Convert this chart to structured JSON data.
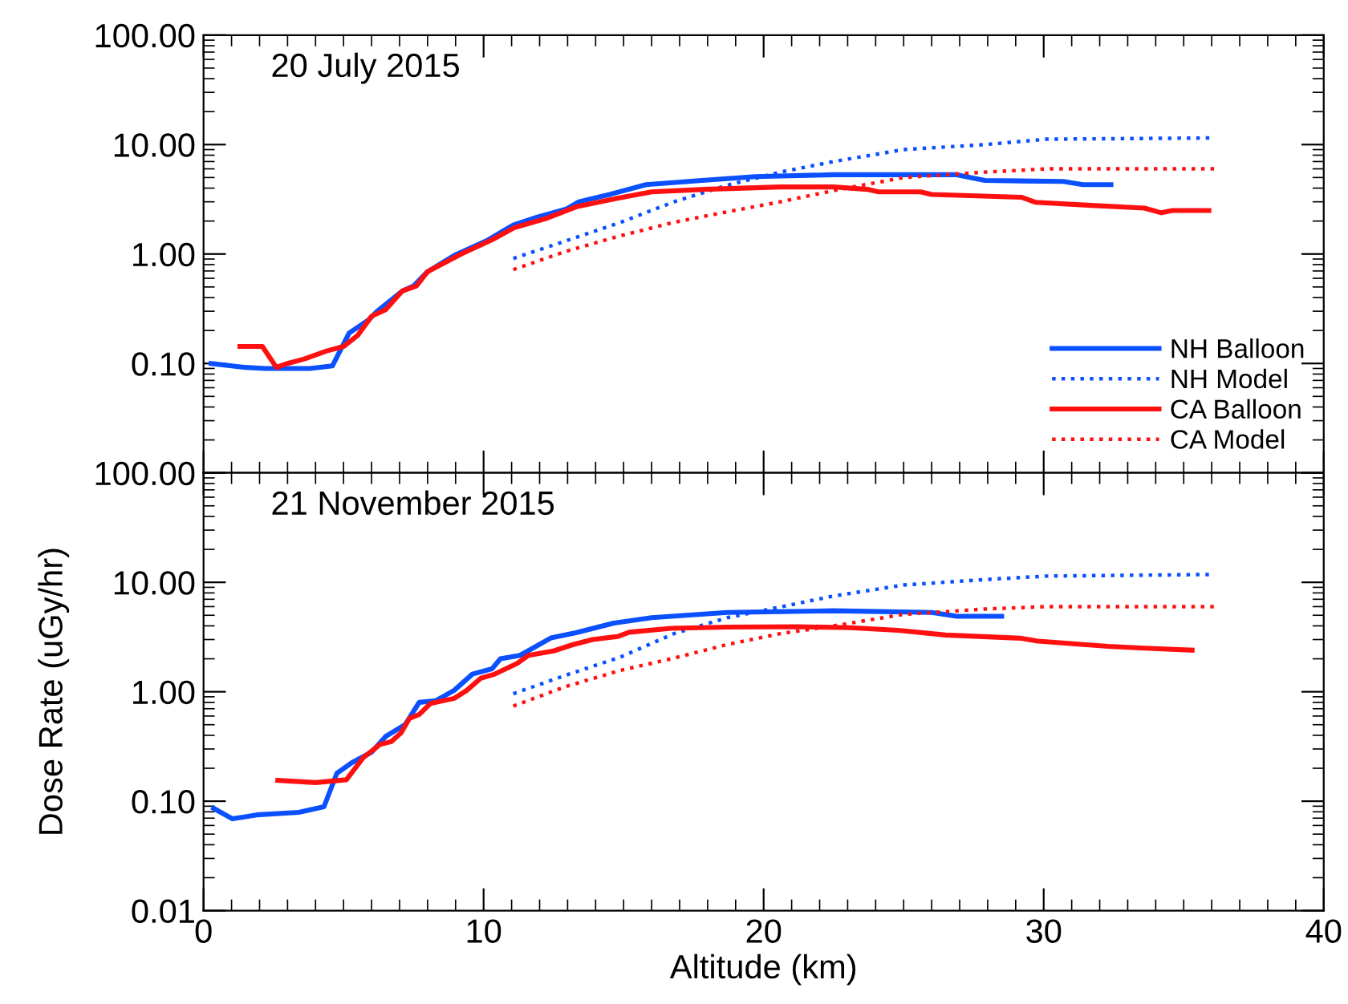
{
  "chart_data": [
    {
      "type": "line",
      "title": "20 July 2015",
      "xlim": [
        0,
        40
      ],
      "xticks": [
        0,
        10,
        20,
        30,
        40
      ],
      "ylim": [
        0.01,
        100
      ],
      "log": true,
      "yticks": [
        {
          "value": 0.01,
          "label": null
        },
        {
          "value": 0.1,
          "label": "0.10"
        },
        {
          "value": 1,
          "label": "1.00"
        },
        {
          "value": 10,
          "label": "10.00"
        },
        {
          "value": 100,
          "label": "100.00"
        }
      ],
      "tick_labels": "y",
      "legend": "bottom right",
      "grid": false,
      "series": [
        {
          "name": "NH Balloon",
          "color": "#0a50ff",
          "line_style": "solid",
          "x": [
            0.27,
            1.5,
            2.2,
            3.8,
            4.6,
            5.2,
            5.9,
            6.2,
            7.1,
            7.5,
            8.0,
            8.95,
            10.1,
            11.06,
            11.9,
            12.95,
            13.4,
            14.5,
            15.8,
            17.8,
            19.7,
            22.5,
            26.9,
            27.9,
            30.7,
            31.4,
            32.4
          ],
          "values": [
            0.1,
            0.092,
            0.09,
            0.09,
            0.095,
            0.19,
            0.25,
            0.3,
            0.46,
            0.51,
            0.69,
            0.97,
            1.32,
            1.84,
            2.17,
            2.57,
            3.0,
            3.5,
            4.3,
            4.7,
            5.1,
            5.3,
            5.3,
            4.7,
            4.6,
            4.3,
            4.3
          ]
        },
        {
          "name": "NH Model",
          "color": "#0a50ff",
          "line_style": "dotted",
          "x": [
            11.06,
            12.95,
            14.9,
            16.8,
            18.7,
            20.6,
            22.5,
            25.0,
            27.9,
            30.1,
            36.1
          ],
          "values": [
            0.91,
            1.32,
            1.95,
            3.0,
            4.25,
            5.6,
            7.0,
            9.0,
            10,
            11.2,
            11.5
          ]
        },
        {
          "name": "CA Balloon",
          "color": "#ff1010",
          "line_style": "solid",
          "x": [
            1.3,
            2.1,
            2.6,
            3.0,
            3.6,
            4.4,
            5.0,
            5.5,
            6.0,
            6.5,
            7.1,
            7.6,
            8.0,
            9.2,
            10.3,
            11.1,
            12.2,
            13.35,
            14.7,
            16.0,
            17.9,
            20.6,
            22.5,
            23.7,
            24.1,
            25.6,
            26.0,
            29.2,
            29.7,
            31.7,
            33.6,
            34.2,
            34.6,
            35.9
          ],
          "values": [
            0.143,
            0.143,
            0.092,
            0.1,
            0.11,
            0.13,
            0.143,
            0.18,
            0.27,
            0.31,
            0.46,
            0.51,
            0.69,
            1.0,
            1.35,
            1.74,
            2.1,
            2.72,
            3.2,
            3.7,
            3.9,
            4.1,
            4.1,
            3.9,
            3.7,
            3.7,
            3.5,
            3.3,
            2.97,
            2.78,
            2.63,
            2.38,
            2.5,
            2.5
          ]
        },
        {
          "name": "CA Model",
          "color": "#ff1010",
          "line_style": "dotted",
          "x": [
            11.06,
            12.95,
            14.9,
            16.8,
            18.7,
            20.6,
            22.5,
            25.0,
            27.9,
            30.1,
            36.1
          ],
          "values": [
            0.72,
            1.06,
            1.47,
            1.95,
            2.43,
            3.0,
            3.8,
            5.0,
            5.6,
            6.0,
            6.0
          ]
        }
      ]
    },
    {
      "type": "line",
      "title": "21 November 2015",
      "xlim": [
        0,
        40
      ],
      "xticks": [
        0,
        10,
        20,
        30,
        40
      ],
      "ylim": [
        0.01,
        100
      ],
      "log": true,
      "yticks": [
        {
          "value": 0.01,
          "label": "0.01"
        },
        {
          "value": 0.1,
          "label": "0.10"
        },
        {
          "value": 1,
          "label": "1.00"
        },
        {
          "value": 10,
          "label": "10.00"
        },
        {
          "value": 100,
          "label": "100.00"
        }
      ],
      "xlabel": "Altitude (km)",
      "ylabel": "Dose Rate (uGy/hr)",
      "grid": false,
      "series": [
        {
          "color": "#0a50ff",
          "line_style": "solid",
          "x": [
            0.36,
            1.03,
            1.9,
            3.4,
            4.3,
            4.76,
            5.3,
            6.0,
            6.5,
            7.2,
            7.7,
            8.3,
            8.95,
            9.6,
            10.3,
            10.6,
            11.3,
            12.4,
            13.3,
            14.65,
            16.0,
            18.7,
            22.5,
            26.0,
            26.9,
            28.5
          ],
          "values": [
            0.086,
            0.069,
            0.075,
            0.079,
            0.089,
            0.18,
            0.225,
            0.28,
            0.39,
            0.5,
            0.8,
            0.83,
            1.03,
            1.45,
            1.62,
            2.0,
            2.15,
            3.1,
            3.46,
            4.24,
            4.75,
            5.3,
            5.5,
            5.3,
            4.9,
            4.9
          ]
        },
        {
          "color": "#0a50ff",
          "line_style": "dotted",
          "x": [
            11.06,
            12.95,
            14.9,
            16.8,
            18.7,
            20.6,
            22.5,
            25.0,
            27.9,
            30.1,
            36.1
          ],
          "values": [
            0.96,
            1.42,
            2.08,
            3.4,
            4.75,
            5.95,
            7.5,
            9.45,
            10.6,
            11.4,
            11.8
          ]
        },
        {
          "color": "#ff1010",
          "line_style": "solid",
          "x": [
            2.65,
            4.0,
            5.1,
            5.7,
            6.3,
            6.7,
            7.05,
            7.35,
            7.7,
            8.1,
            8.95,
            9.4,
            9.9,
            10.4,
            11.2,
            11.6,
            12.5,
            13.2,
            13.9,
            14.8,
            15.2,
            16.7,
            18.7,
            21.2,
            23.1,
            24.8,
            26.5,
            29.2,
            29.8,
            32.3,
            33.6,
            35.3
          ],
          "values": [
            0.155,
            0.148,
            0.157,
            0.25,
            0.33,
            0.35,
            0.42,
            0.57,
            0.62,
            0.78,
            0.87,
            1.03,
            1.33,
            1.45,
            1.82,
            2.15,
            2.36,
            2.7,
            3.0,
            3.2,
            3.5,
            3.8,
            3.9,
            3.93,
            3.85,
            3.64,
            3.3,
            3.08,
            2.9,
            2.6,
            2.5,
            2.4
          ]
        },
        {
          "color": "#ff1010",
          "line_style": "dotted",
          "x": [
            11.06,
            12.95,
            14.9,
            16.8,
            18.7,
            20.6,
            22.5,
            25.0,
            27.9,
            30.1,
            36.1
          ],
          "values": [
            0.74,
            1.12,
            1.57,
            2.03,
            2.7,
            3.4,
            4.0,
            5.1,
            5.7,
            6.0,
            6.0
          ]
        }
      ]
    }
  ]
}
